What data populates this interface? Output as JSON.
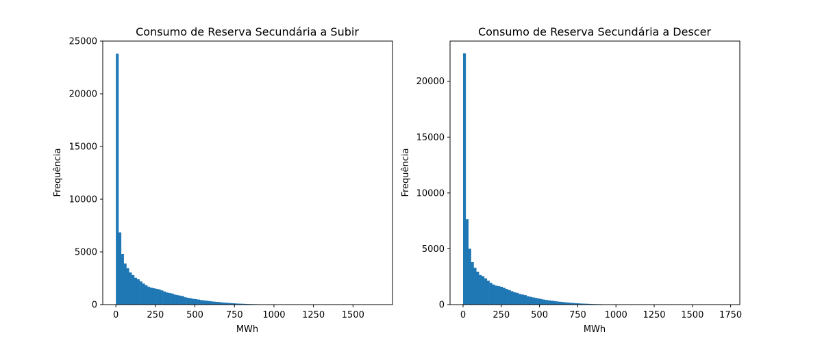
{
  "figure": {
    "background": "#ffffff"
  },
  "chart_data": [
    {
      "type": "bar",
      "subtype": "histogram",
      "title": "Consumo de Reserva Secundária a Subir",
      "xlabel": "MWh",
      "ylabel": "Frequência",
      "bar_color": "#1f77b4",
      "xlim": [
        -83,
        1750
      ],
      "ylim": [
        0,
        25000
      ],
      "xticks": [
        0,
        250,
        500,
        750,
        1000,
        1250,
        1500
      ],
      "yticks": [
        0,
        5000,
        10000,
        15000,
        20000,
        25000
      ],
      "bin_start": 0,
      "bin_width": 16.6,
      "values": [
        23800,
        6850,
        4800,
        3900,
        3450,
        3050,
        2800,
        2550,
        2400,
        2200,
        2000,
        1850,
        1700,
        1600,
        1550,
        1500,
        1450,
        1350,
        1250,
        1150,
        1100,
        1050,
        950,
        900,
        850,
        800,
        700,
        650,
        600,
        550,
        520,
        480,
        430,
        400,
        370,
        340,
        310,
        280,
        260,
        240,
        210,
        190,
        170,
        150,
        130,
        115,
        100,
        90,
        80,
        70,
        60,
        50,
        45,
        40,
        35,
        30,
        28,
        25,
        22,
        20,
        18,
        15,
        13,
        12,
        10,
        9,
        8,
        7,
        6,
        5,
        5,
        4,
        4,
        3,
        3,
        2,
        2,
        2,
        2,
        1,
        1,
        1,
        1,
        1,
        1,
        1,
        1,
        1,
        1,
        1,
        1,
        1,
        1,
        1,
        1,
        1,
        1,
        1,
        1,
        1
      ],
      "grid": false,
      "legend": "none"
    },
    {
      "type": "bar",
      "subtype": "histogram",
      "title": "Consumo de Reserva Secundária a Descer",
      "xlabel": "MWh",
      "ylabel": "Frequência",
      "bar_color": "#1f77b4",
      "xlim": [
        -85,
        1810
      ],
      "ylim": [
        0,
        23600
      ],
      "xticks": [
        0,
        250,
        500,
        750,
        1000,
        1250,
        1500,
        1750
      ],
      "yticks": [
        0,
        5000,
        10000,
        15000,
        20000
      ],
      "bin_start": 0,
      "bin_width": 17.3,
      "values": [
        22500,
        7650,
        5000,
        3800,
        3300,
        2950,
        2650,
        2550,
        2350,
        2150,
        1950,
        1800,
        1700,
        1650,
        1600,
        1500,
        1400,
        1300,
        1200,
        1100,
        1050,
        950,
        900,
        850,
        750,
        700,
        650,
        600,
        550,
        500,
        450,
        420,
        380,
        350,
        320,
        290,
        260,
        240,
        210,
        190,
        170,
        150,
        130,
        115,
        100,
        90,
        80,
        70,
        60,
        50,
        45,
        40,
        35,
        30,
        28,
        25,
        22,
        20,
        18,
        15,
        13,
        12,
        10,
        9,
        8,
        7,
        6,
        5,
        5,
        4,
        4,
        3,
        3,
        2,
        2,
        2,
        2,
        1,
        1,
        1,
        1,
        1,
        1,
        1,
        1,
        1,
        1,
        1,
        1,
        1,
        1,
        1,
        1,
        1,
        1,
        1,
        1,
        1,
        1,
        1
      ],
      "grid": false,
      "legend": "none"
    }
  ]
}
